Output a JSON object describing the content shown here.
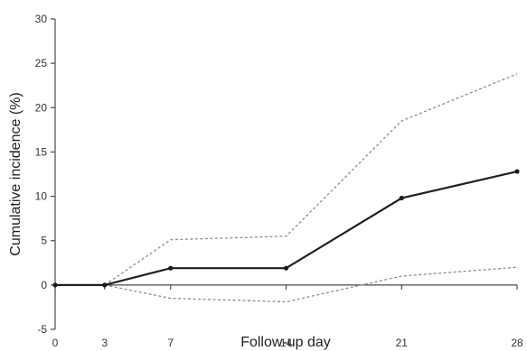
{
  "chart_data": {
    "type": "line",
    "title": "",
    "xlabel": "Follow-up day",
    "ylabel": "Cumulative incidence (%)",
    "x": [
      0,
      3,
      7,
      14,
      21,
      28
    ],
    "x_tick_labels": [
      "0",
      "3",
      "7",
      "14",
      "21",
      "28"
    ],
    "ylim": [
      -5,
      30
    ],
    "y_ticks": [
      -5,
      0,
      5,
      10,
      15,
      20,
      25,
      30
    ],
    "grid": false,
    "series": [
      {
        "role": "estimate",
        "style": "solid",
        "color": "#1f1f1f",
        "markers": true,
        "values": [
          0,
          0,
          1.9,
          1.9,
          9.8,
          12.8
        ]
      },
      {
        "role": "upper-ci",
        "style": "dashed",
        "color": "#8c8c8c",
        "markers": false,
        "values": [
          0,
          0,
          5.1,
          5.5,
          18.5,
          23.8
        ]
      },
      {
        "role": "lower-ci",
        "style": "dashed",
        "color": "#8c8c8c",
        "markers": false,
        "values": [
          0,
          0,
          -1.5,
          -1.9,
          1.0,
          2.0
        ]
      }
    ]
  }
}
